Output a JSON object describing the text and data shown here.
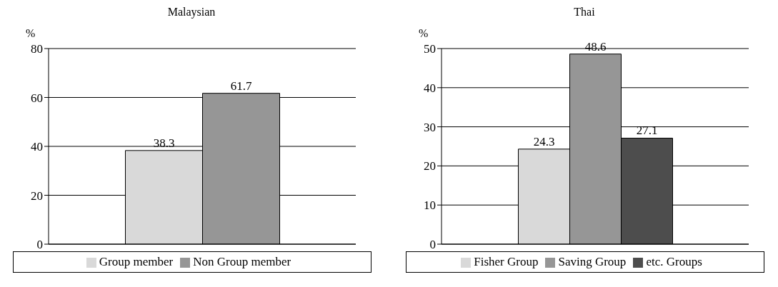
{
  "chart_data": [
    {
      "type": "bar",
      "title": "Malaysian",
      "ylabel": "%",
      "categories": [
        null
      ],
      "series": [
        {
          "name": "Group member",
          "color": "#d9d9d9",
          "values": [
            38.3
          ]
        },
        {
          "name": "Non Group member",
          "color": "#969696",
          "values": [
            61.7
          ]
        }
      ],
      "ylim": [
        0,
        80
      ],
      "yticks": [
        0,
        20,
        40,
        60,
        80
      ],
      "grid": "y",
      "legend": "bottom",
      "data_labels": true
    },
    {
      "type": "bar",
      "title": "Thai",
      "ylabel": "%",
      "categories": [
        null
      ],
      "series": [
        {
          "name": "Fisher Group",
          "color": "#d9d9d9",
          "values": [
            24.3
          ]
        },
        {
          "name": "Saving Group",
          "color": "#969696",
          "values": [
            48.6
          ]
        },
        {
          "name": "etc. Groups",
          "color": "#4d4d4d",
          "values": [
            27.1
          ]
        }
      ],
      "ylim": [
        0,
        50
      ],
      "yticks": [
        0,
        10,
        20,
        30,
        40,
        50
      ],
      "grid": "y",
      "legend": "bottom",
      "data_labels": true
    }
  ]
}
